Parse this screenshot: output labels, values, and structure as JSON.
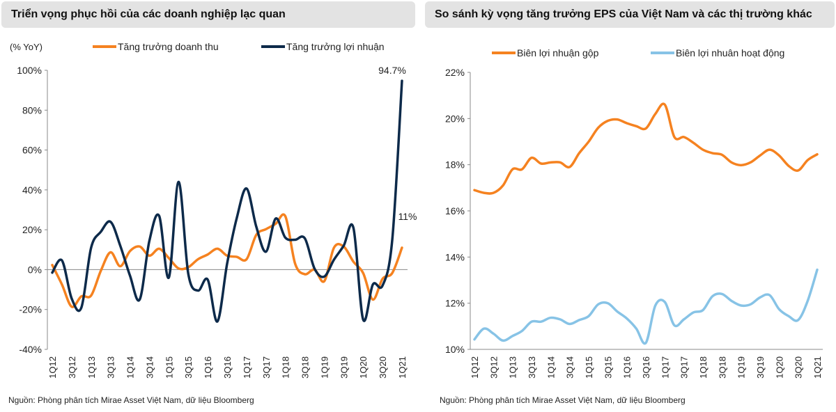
{
  "left": {
    "header": "Triển vọng phục hồi của các doanh nghiệp lạc quan",
    "source": "Nguồn: Phòng phân tích Mirae Asset Việt Nam, dữ liệu Bloomberg"
  },
  "right": {
    "header": "So sánh kỳ vọng tăng trưởng EPS của Việt Nam và các thị trường khác",
    "source": "Nguồn: Phòng phân tích Mirae Asset Việt Nam, dữ liệu Bloomberg"
  },
  "chart_data": [
    {
      "type": "line",
      "title": "",
      "ylabel": "(% YoY)",
      "ylim": [
        -40,
        100
      ],
      "yticks": [
        "100%",
        "80%",
        "60%",
        "40%",
        "20%",
        "0%",
        "-20%",
        "-40%"
      ],
      "xtick_labels": [
        "1Q12",
        "3Q12",
        "1Q13",
        "3Q13",
        "1Q14",
        "3Q14",
        "1Q15",
        "3Q15",
        "1Q16",
        "3Q16",
        "1Q17",
        "3Q17",
        "1Q18",
        "3Q18",
        "1Q19",
        "3Q19",
        "1Q20",
        "3Q20",
        "1Q21"
      ],
      "x_start": "1Q12",
      "x_end": "1Q21",
      "grid": false,
      "legend": "top",
      "series": [
        {
          "name": "Tăng trưởng doanh thu",
          "color": "#f58220",
          "values": [
            2.3,
            -7.5,
            -18.6,
            -13.4,
            -13,
            -0.6,
            8.7,
            1.7,
            9.3,
            11.6,
            7,
            10.5,
            5.8,
            0.6,
            1.2,
            5.2,
            7.6,
            10.5,
            7,
            6.4,
            5.2,
            17.4,
            20.3,
            23,
            26.7,
            3,
            -2.3,
            0,
            -5.8,
            11,
            11.6,
            4,
            -1.7,
            -15,
            -4.6,
            -1.7,
            11
          ],
          "end_label": "11%"
        },
        {
          "name": "Tăng trưởng lợi nhuận",
          "color": "#0d2a4a",
          "values": [
            -1.5,
            4.6,
            -14.5,
            -19,
            11,
            19,
            24,
            12,
            -3,
            -15,
            14.5,
            27,
            -4,
            44,
            -2,
            -10.5,
            -5,
            -26,
            3,
            26,
            40.7,
            21.6,
            9,
            25.6,
            16,
            15,
            15.7,
            0.5,
            -3.5,
            5,
            12,
            21,
            -25,
            -7.5,
            -8,
            15,
            94.7
          ],
          "end_label": "94.7%"
        }
      ]
    },
    {
      "type": "line",
      "title": "",
      "ylim": [
        10,
        22
      ],
      "yticks": [
        "22%",
        "20%",
        "18%",
        "16%",
        "14%",
        "12%",
        "10%"
      ],
      "xtick_labels": [
        "1Q12",
        "3Q12",
        "1Q13",
        "3Q13",
        "1Q14",
        "3Q14",
        "1Q15",
        "3Q15",
        "1Q16",
        "3Q16",
        "1Q17",
        "3Q17",
        "1Q18",
        "3Q18",
        "1Q19",
        "3Q19",
        "1Q20",
        "3Q20",
        "1Q21"
      ],
      "x_start": "1Q12",
      "x_end": "1Q21",
      "grid": false,
      "legend": "top",
      "series": [
        {
          "name": "Biên lợi nhuận gộp",
          "color": "#f58220",
          "values": [
            16.9,
            16.78,
            16.78,
            17.1,
            17.8,
            17.8,
            18.3,
            18.05,
            18.1,
            18.1,
            17.9,
            18.5,
            19.0,
            19.6,
            19.9,
            19.96,
            19.8,
            19.67,
            19.57,
            20.2,
            20.6,
            19.2,
            19.2,
            18.95,
            18.65,
            18.5,
            18.43,
            18.1,
            17.98,
            18.1,
            18.4,
            18.65,
            18.4,
            17.95,
            17.75,
            18.2,
            18.45
          ]
        },
        {
          "name": "Biên lợi nhuân hoạt động",
          "color": "#87c3e6",
          "values": [
            10.43,
            10.9,
            10.68,
            10.38,
            10.58,
            10.8,
            11.2,
            11.2,
            11.37,
            11.3,
            11.1,
            11.27,
            11.44,
            11.95,
            12.0,
            11.64,
            11.34,
            10.9,
            10.28,
            11.9,
            12.05,
            11.04,
            11.3,
            11.6,
            11.7,
            12.3,
            12.4,
            12.1,
            11.9,
            11.95,
            12.25,
            12.35,
            11.74,
            11.44,
            11.27,
            12.1,
            13.45
          ]
        }
      ]
    }
  ]
}
